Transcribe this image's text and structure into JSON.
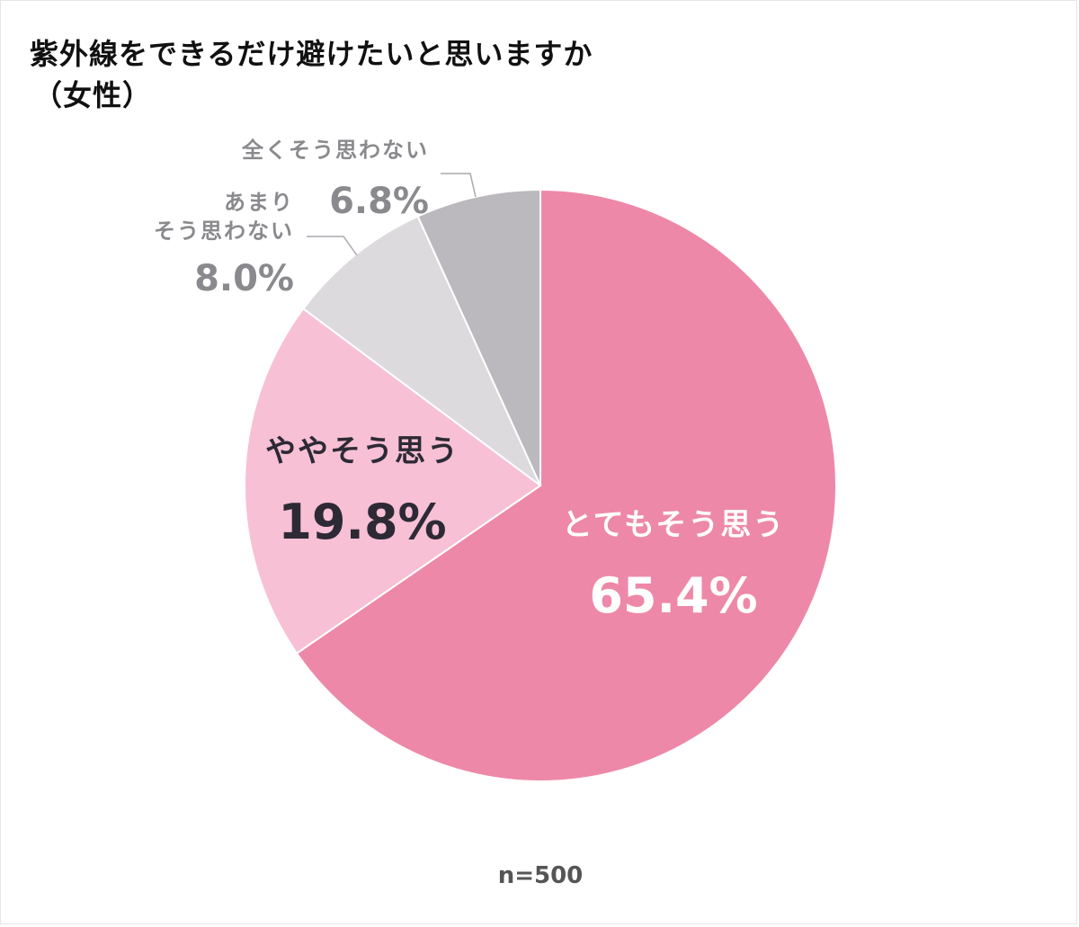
{
  "chart_data": {
    "type": "pie",
    "title": "紫外線をできるだけ避けたいと思いますか",
    "subtitle": "（女性）",
    "note": "n=500",
    "start_angle_deg": 0,
    "direction": "clockwise",
    "slices": [
      {
        "name": "とてもそう思う",
        "name_lines": [
          "とてもそう思う"
        ],
        "value": 65.4,
        "value_label": "65.4%",
        "color": "#ee88a8",
        "text_color": "#ffffff"
      },
      {
        "name": "ややそう思う",
        "name_lines": [
          "ややそう思う"
        ],
        "value": 19.8,
        "value_label": "19.8%",
        "color": "#f7c0d5",
        "text_color": "#2d2a35"
      },
      {
        "name": "あまりそう思わない",
        "name_lines": [
          "あまり",
          "そう思わない"
        ],
        "value": 8.0,
        "value_label": "8.0%",
        "color": "#dcdadd",
        "text_color": "#8a8a8e"
      },
      {
        "name": "全くそう思わない",
        "name_lines": [
          "全くそう思わない"
        ],
        "value": 6.8,
        "value_label": "6.8%",
        "color": "#bbb9bd",
        "text_color": "#8a8a8e"
      }
    ]
  }
}
